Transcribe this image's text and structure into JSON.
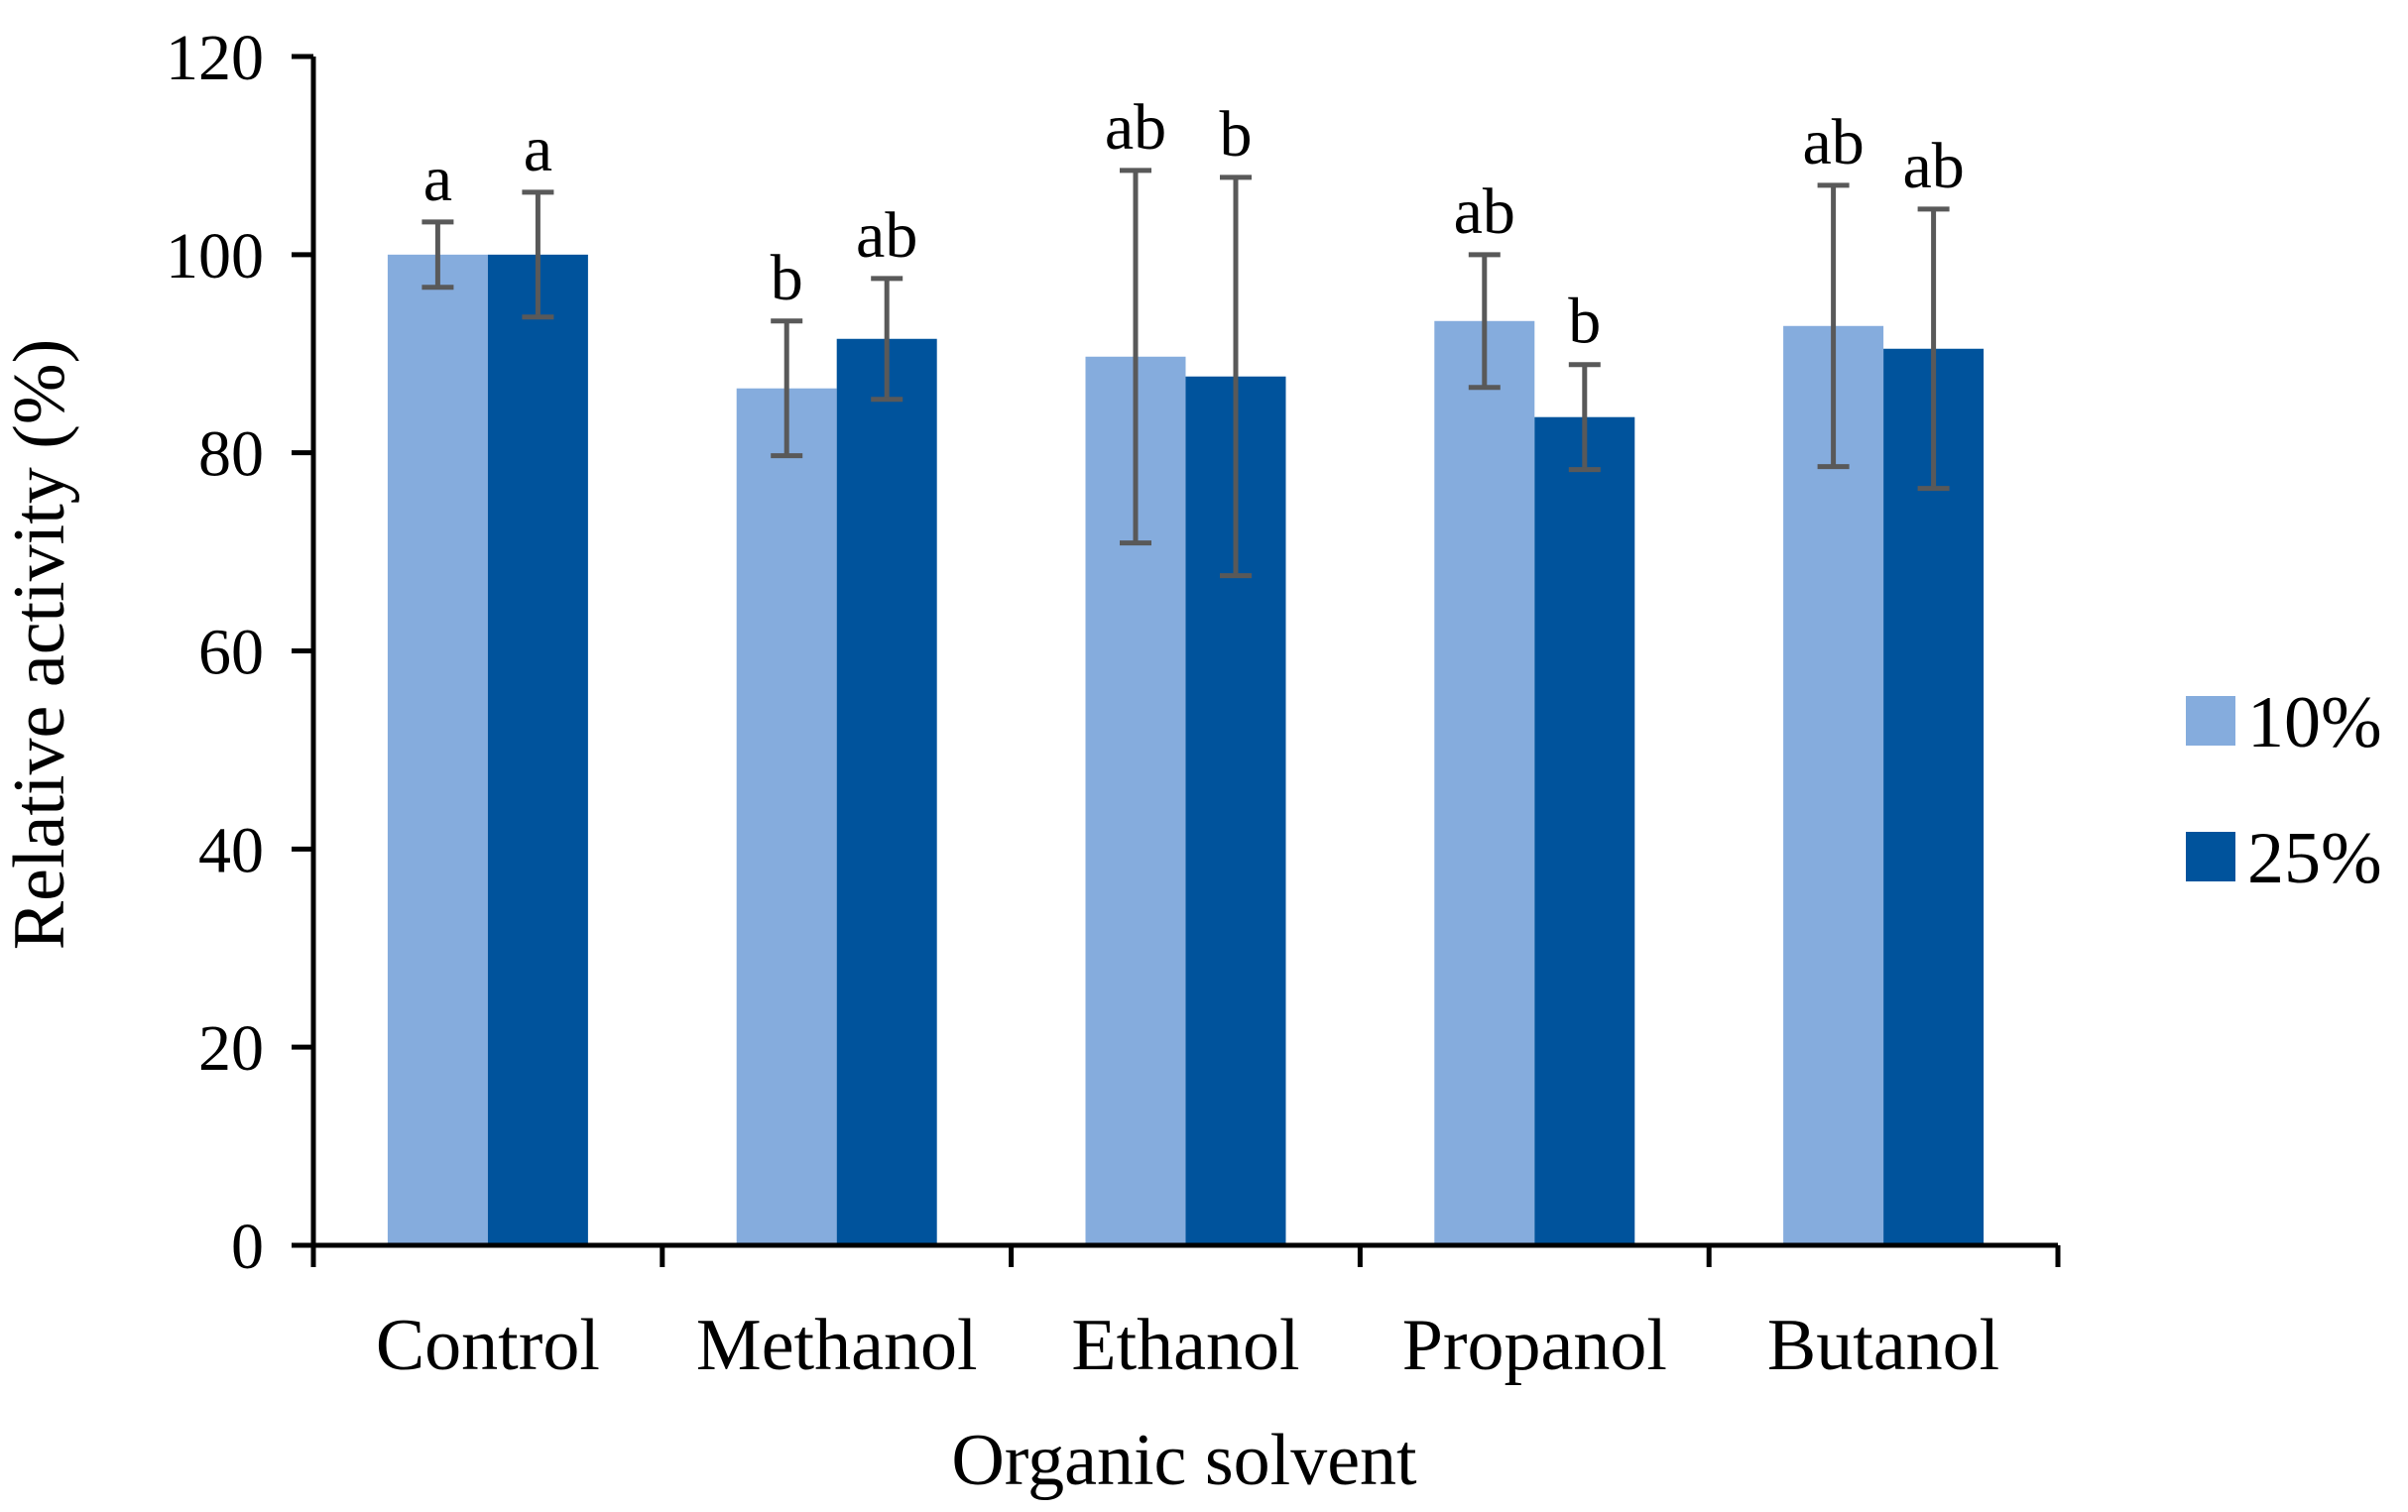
{
  "chart_data": {
    "type": "bar",
    "title": "",
    "xlabel": "Organic solvent",
    "ylabel": "Relative activity (%)",
    "ylim": [
      0,
      120
    ],
    "yticks": [
      0,
      20,
      40,
      60,
      80,
      100,
      120
    ],
    "categories": [
      "Control",
      "Methanol",
      "Ethanol",
      "Propanol",
      "Butanol"
    ],
    "series": [
      {
        "name": "10%",
        "color": "#85ACDD",
        "values": [
          100,
          86.5,
          89.7,
          93.3,
          92.8
        ],
        "errors": [
          3.3,
          6.8,
          18.8,
          6.7,
          14.2
        ],
        "significance": [
          "a",
          "b",
          "ab",
          "ab",
          "ab"
        ]
      },
      {
        "name": "25%",
        "color": "#00539C",
        "values": [
          100,
          91.5,
          87.7,
          83.6,
          90.5
        ],
        "errors": [
          6.3,
          6.1,
          20.1,
          5.3,
          14.1
        ],
        "significance": [
          "a",
          "ab",
          "b",
          "b",
          "ab"
        ]
      }
    ],
    "error_bar_color": "#595959",
    "legend_position": "right"
  }
}
